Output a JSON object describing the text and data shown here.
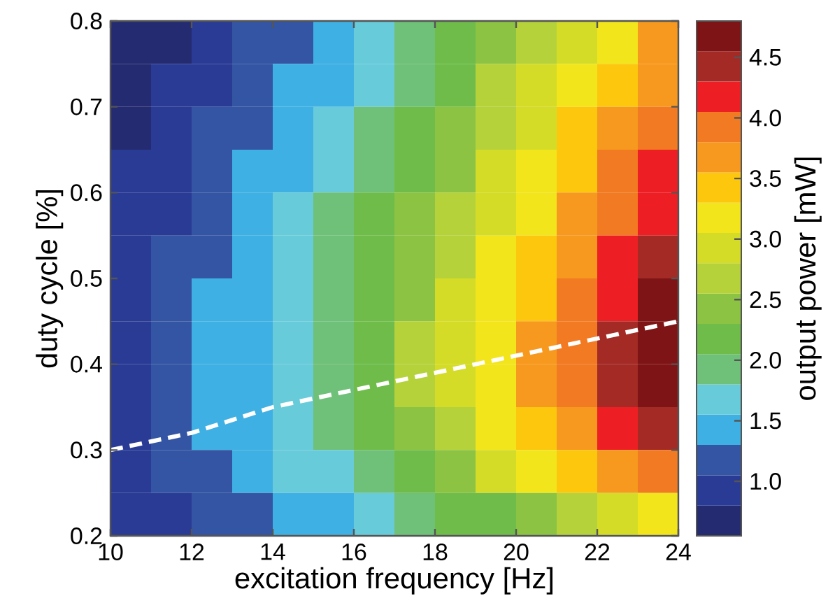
{
  "chart_data": {
    "type": "heatmap",
    "xlabel": "excitation frequency [Hz]",
    "ylabel": "duty cycle [%]",
    "clabel": "output power [mW]",
    "x": [
      10.5,
      11.5,
      12.5,
      13.5,
      14.5,
      15.5,
      16.5,
      17.5,
      18.5,
      19.5,
      20.5,
      21.5,
      22.5,
      23.5
    ],
    "y": [
      0.775,
      0.725,
      0.675,
      0.625,
      0.575,
      0.525,
      0.475,
      0.425,
      0.375,
      0.325,
      0.275,
      0.225
    ],
    "cells": [
      [
        0.63,
        0.78,
        0.93,
        1.09,
        1.25,
        1.44,
        1.66,
        1.89,
        2.13,
        2.41,
        2.71,
        3.0,
        3.29,
        3.56
      ],
      [
        0.69,
        0.84,
        1.01,
        1.16,
        1.33,
        1.54,
        1.77,
        2.01,
        2.27,
        2.56,
        2.87,
        3.17,
        3.48,
        3.75
      ],
      [
        0.75,
        0.91,
        1.07,
        1.24,
        1.42,
        1.63,
        1.87,
        2.13,
        2.41,
        2.71,
        3.01,
        3.33,
        3.65,
        3.93
      ],
      [
        0.8,
        0.97,
        1.14,
        1.31,
        1.5,
        1.72,
        1.97,
        2.24,
        2.53,
        2.84,
        3.16,
        3.47,
        3.82,
        4.11
      ],
      [
        0.85,
        1.02,
        1.2,
        1.38,
        1.57,
        1.8,
        2.06,
        2.35,
        2.65,
        2.97,
        3.29,
        3.61,
        3.97,
        4.27
      ],
      [
        0.9,
        1.08,
        1.26,
        1.44,
        1.64,
        1.87,
        2.14,
        2.44,
        2.76,
        3.09,
        3.41,
        3.74,
        4.11,
        4.42
      ],
      [
        0.94,
        1.12,
        1.3,
        1.49,
        1.7,
        1.94,
        2.22,
        2.53,
        2.86,
        3.19,
        3.51,
        3.85,
        4.24,
        4.55
      ],
      [
        0.97,
        1.16,
        1.34,
        1.53,
        1.74,
        1.99,
        2.27,
        2.59,
        2.93,
        3.27,
        3.59,
        3.94,
        4.34,
        4.65
      ],
      [
        0.98,
        1.16,
        1.34,
        1.53,
        1.74,
        1.99,
        2.27,
        2.59,
        2.92,
        3.26,
        3.58,
        3.92,
        4.32,
        4.63
      ],
      [
        0.96,
        1.13,
        1.3,
        1.48,
        1.68,
        1.91,
        2.18,
        2.48,
        2.79,
        3.11,
        3.41,
        3.73,
        4.11,
        4.4
      ],
      [
        0.93,
        1.07,
        1.22,
        1.38,
        1.56,
        1.76,
        1.99,
        2.25,
        2.53,
        2.8,
        3.07,
        3.35,
        3.68,
        3.95
      ],
      [
        0.86,
        0.96,
        1.07,
        1.2,
        1.34,
        1.49,
        1.66,
        1.86,
        2.06,
        2.26,
        2.47,
        2.69,
        2.93,
        3.13
      ]
    ],
    "xlim": [
      10,
      24
    ],
    "xticks": [
      10,
      12,
      14,
      16,
      18,
      20,
      22,
      24
    ],
    "ylim": [
      0.2,
      0.8
    ],
    "yticks": [
      0.2,
      0.3,
      0.4,
      0.5,
      0.6,
      0.7,
      0.8
    ],
    "clim": [
      0.55,
      4.8
    ],
    "cticks": [
      {
        "value": 1,
        "label": "1.0"
      },
      {
        "value": 1.5,
        "label": "1.5"
      },
      {
        "value": 2,
        "label": "2.0"
      },
      {
        "value": 2.5,
        "label": "2.5"
      },
      {
        "value": 3,
        "label": "3.0"
      },
      {
        "value": 3.5,
        "label": "3.5"
      },
      {
        "value": 4,
        "label": "4.0"
      },
      {
        "value": 4.5,
        "label": "4.5"
      }
    ],
    "series": [
      {
        "type": "line",
        "color": "#ffffff",
        "line_style": "dashed",
        "x": [
          10,
          12,
          14,
          16,
          18,
          20,
          22,
          24
        ],
        "values": [
          0.3,
          0.32,
          0.35,
          0.37,
          0.39,
          0.41,
          0.43,
          0.45
        ]
      }
    ]
  }
}
